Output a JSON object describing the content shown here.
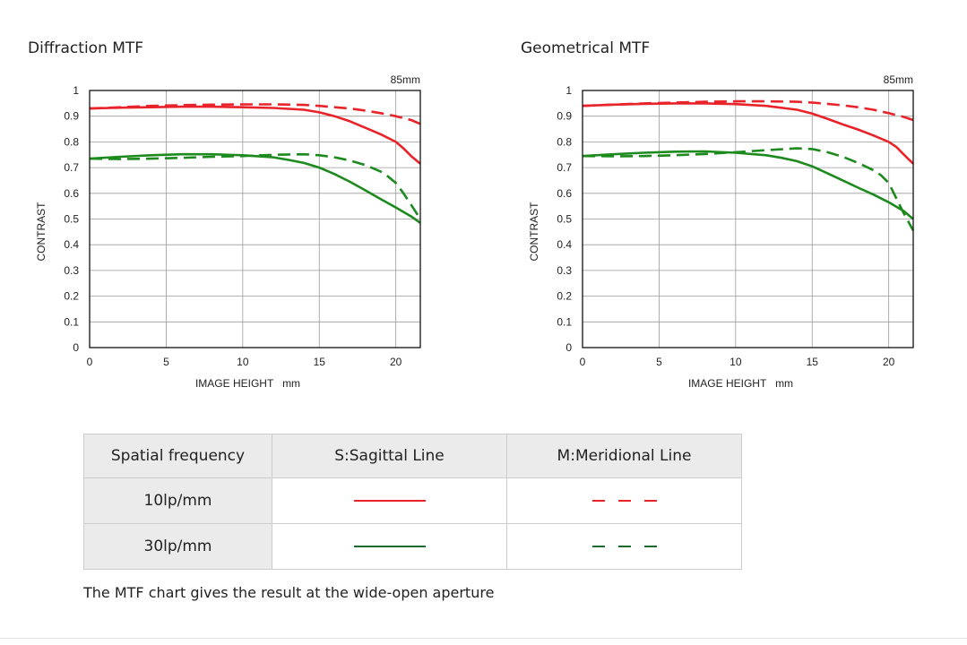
{
  "chart_data": [
    {
      "type": "line",
      "title": "Diffraction MTF",
      "xlabel": "IMAGE HEIGHT   mm",
      "ylabel": "CONTRAST",
      "corner_label": "85mm",
      "xlim": [
        0,
        21.6
      ],
      "ylim": [
        0,
        1
      ],
      "xticks": [
        0,
        5,
        10,
        15,
        20
      ],
      "yticks": [
        0,
        0.1,
        0.2,
        0.3,
        0.4,
        0.5,
        0.6,
        0.7,
        0.8,
        0.9,
        1
      ],
      "grid": true,
      "series": [
        {
          "name": "10lp/mm S:Sagittal Line",
          "color": "#e8232a",
          "dash": false,
          "x": [
            0,
            2,
            4,
            6,
            8,
            10,
            12,
            14,
            15,
            16,
            17,
            18,
            19,
            20,
            20.5,
            21,
            21.6
          ],
          "y": [
            0.93,
            0.933,
            0.935,
            0.937,
            0.937,
            0.935,
            0.932,
            0.925,
            0.915,
            0.9,
            0.88,
            0.855,
            0.83,
            0.8,
            0.775,
            0.745,
            0.715
          ]
        },
        {
          "name": "10lp/mm M:Meridional Line",
          "color": "#e8232a",
          "dash": true,
          "x": [
            0,
            2,
            4,
            6,
            8,
            10,
            12,
            14,
            15,
            16,
            17,
            18,
            19,
            20,
            21,
            21.6
          ],
          "y": [
            0.93,
            0.935,
            0.94,
            0.943,
            0.945,
            0.946,
            0.946,
            0.944,
            0.94,
            0.935,
            0.93,
            0.922,
            0.912,
            0.9,
            0.885,
            0.87
          ]
        },
        {
          "name": "30lp/mm S:Sagittal Line",
          "color": "#1d8a1d",
          "dash": false,
          "x": [
            0,
            2,
            4,
            6,
            8,
            10,
            12,
            13,
            14,
            15,
            16,
            17,
            18,
            19,
            20,
            21,
            21.6
          ],
          "y": [
            0.735,
            0.742,
            0.748,
            0.752,
            0.752,
            0.748,
            0.74,
            0.73,
            0.718,
            0.7,
            0.675,
            0.645,
            0.612,
            0.578,
            0.545,
            0.51,
            0.485
          ]
        },
        {
          "name": "30lp/mm M:Meridional Line",
          "color": "#1d8a1d",
          "dash": true,
          "x": [
            0,
            2,
            4,
            6,
            8,
            10,
            12,
            14,
            15,
            16,
            17,
            18,
            19,
            19.5,
            20,
            20.5,
            21,
            21.6
          ],
          "y": [
            0.735,
            0.733,
            0.735,
            0.738,
            0.742,
            0.745,
            0.75,
            0.752,
            0.748,
            0.74,
            0.728,
            0.71,
            0.685,
            0.665,
            0.64,
            0.6,
            0.555,
            0.5
          ]
        }
      ]
    },
    {
      "type": "line",
      "title": "Geometrical MTF",
      "xlabel": "IMAGE HEIGHT   mm",
      "ylabel": "CONTRAST",
      "corner_label": "85mm",
      "xlim": [
        0,
        21.6
      ],
      "ylim": [
        0,
        1
      ],
      "xticks": [
        0,
        5,
        10,
        15,
        20
      ],
      "yticks": [
        0,
        0.1,
        0.2,
        0.3,
        0.4,
        0.5,
        0.6,
        0.7,
        0.8,
        0.9,
        1
      ],
      "grid": true,
      "series": [
        {
          "name": "10lp/mm S:Sagittal Line",
          "color": "#e8232a",
          "dash": false,
          "x": [
            0,
            2,
            4,
            6,
            8,
            10,
            12,
            14,
            15,
            16,
            17,
            18,
            19,
            20,
            20.5,
            21,
            21.6
          ],
          "y": [
            0.94,
            0.945,
            0.948,
            0.95,
            0.95,
            0.947,
            0.94,
            0.925,
            0.91,
            0.89,
            0.868,
            0.848,
            0.825,
            0.8,
            0.78,
            0.75,
            0.715
          ]
        },
        {
          "name": "10lp/mm M:Meridional Line",
          "color": "#e8232a",
          "dash": true,
          "x": [
            0,
            2,
            4,
            6,
            8,
            10,
            12,
            14,
            15,
            16,
            17,
            18,
            19,
            20,
            21,
            21.6
          ],
          "y": [
            0.94,
            0.945,
            0.95,
            0.953,
            0.956,
            0.958,
            0.958,
            0.956,
            0.953,
            0.948,
            0.942,
            0.935,
            0.925,
            0.912,
            0.897,
            0.885
          ]
        },
        {
          "name": "30lp/mm S:Sagittal Line",
          "color": "#1d8a1d",
          "dash": false,
          "x": [
            0,
            2,
            4,
            6,
            8,
            10,
            12,
            13,
            14,
            15,
            16,
            17,
            18,
            19,
            20,
            21,
            21.6
          ],
          "y": [
            0.745,
            0.752,
            0.758,
            0.762,
            0.763,
            0.758,
            0.748,
            0.738,
            0.725,
            0.705,
            0.678,
            0.65,
            0.622,
            0.595,
            0.565,
            0.53,
            0.5
          ]
        },
        {
          "name": "30lp/mm M:Meridional Line",
          "color": "#1d8a1d",
          "dash": true,
          "x": [
            0,
            2,
            4,
            6,
            8,
            10,
            12,
            14,
            15,
            16,
            17,
            18,
            19,
            19.5,
            20,
            20.5,
            21,
            21.6
          ],
          "y": [
            0.745,
            0.744,
            0.745,
            0.748,
            0.753,
            0.76,
            0.768,
            0.775,
            0.772,
            0.76,
            0.742,
            0.718,
            0.69,
            0.67,
            0.64,
            0.58,
            0.52,
            0.455
          ]
        }
      ]
    }
  ],
  "legend_table": {
    "header": {
      "col1": "Spatial frequency",
      "col2": "S:Sagittal Line",
      "col3": "M:Meridional Line"
    },
    "rows": [
      {
        "label": "10lp/mm",
        "color": "#e8232a"
      },
      {
        "label": "30lp/mm",
        "color": "#1a6b2e"
      }
    ]
  },
  "footnote": "The MTF chart gives the result at the wide-open aperture"
}
